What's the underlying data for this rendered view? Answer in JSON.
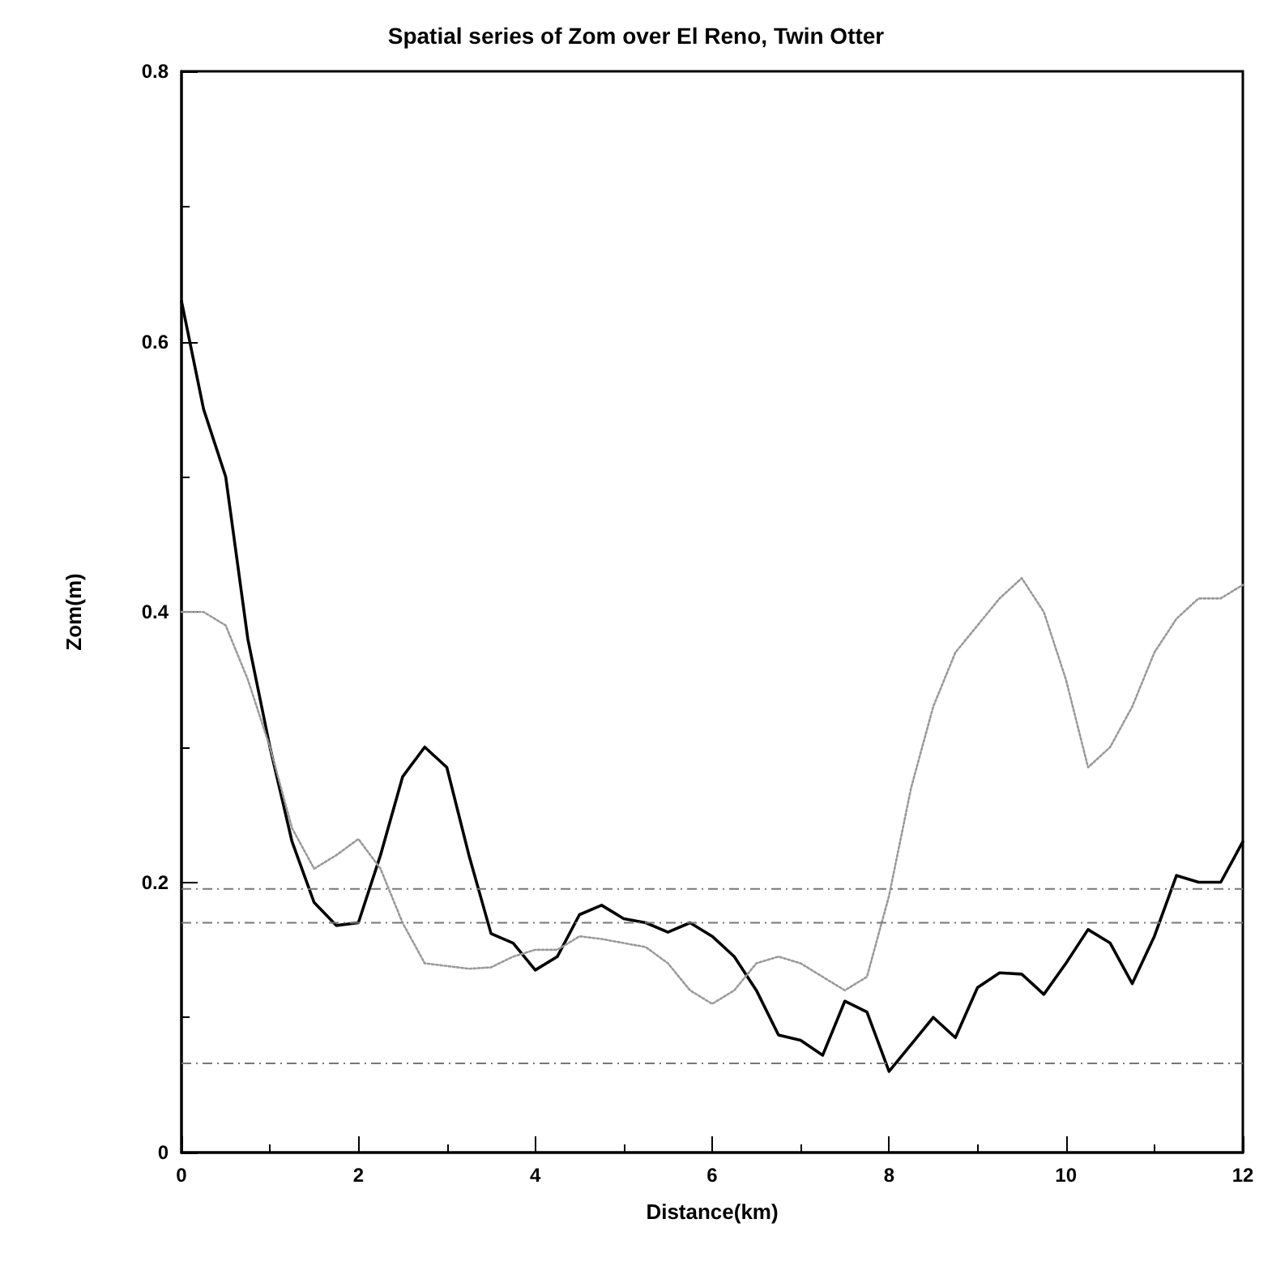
{
  "chart_data": {
    "type": "line",
    "title": "Spatial series of Zom over El Reno, Twin Otter",
    "xlabel": "Distance(km)",
    "ylabel": "Zom(m)",
    "x": [
      0,
      0.25,
      0.5,
      0.75,
      1,
      1.25,
      1.5,
      1.75,
      2,
      2.25,
      2.5,
      2.75,
      3,
      3.25,
      3.5,
      3.75,
      4,
      4.25,
      4.5,
      4.75,
      5,
      5.25,
      5.5,
      5.75,
      6,
      6.25,
      6.5,
      6.75,
      7,
      7.25,
      7.5,
      7.75,
      8,
      8.25,
      8.5,
      8.75,
      9,
      9.25,
      9.5,
      9.75,
      10,
      10.25,
      10.5,
      10.75,
      11,
      11.25,
      11.5,
      11.75,
      12
    ],
    "series": [
      {
        "color": "#000000",
        "line_style": "solid",
        "values": [
          0.63,
          0.55,
          0.5,
          0.38,
          0.3,
          0.23,
          0.185,
          0.168,
          0.17,
          0.22,
          0.278,
          0.3,
          0.285,
          0.22,
          0.162,
          0.155,
          0.135,
          0.145,
          0.176,
          0.183,
          0.173,
          0.17,
          0.163,
          0.17,
          0.16,
          0.145,
          0.12,
          0.087,
          0.083,
          0.072,
          0.112,
          0.104,
          0.06,
          0.08,
          0.1,
          0.085,
          0.122,
          0.133,
          0.132,
          0.117,
          0.14,
          0.165,
          0.155,
          0.125,
          0.16,
          0.205,
          0.2,
          0.2,
          0.23
        ]
      },
      {
        "color": "#999999",
        "line_style": "dotted",
        "values": [
          0.4,
          0.4,
          0.39,
          0.35,
          0.3,
          0.24,
          0.21,
          0.22,
          0.232,
          0.21,
          0.17,
          0.14,
          0.138,
          0.136,
          0.137,
          0.145,
          0.15,
          0.15,
          0.16,
          0.158,
          0.155,
          0.152,
          0.14,
          0.12,
          0.11,
          0.12,
          0.14,
          0.145,
          0.14,
          0.13,
          0.12,
          0.13,
          0.19,
          0.27,
          0.33,
          0.37,
          0.39,
          0.41,
          0.425,
          0.4,
          0.35,
          0.285,
          0.3,
          0.33,
          0.37,
          0.395,
          0.41,
          0.41,
          0.42
        ]
      }
    ],
    "xlim": [
      0,
      12
    ],
    "xticks": [
      0,
      2,
      4,
      6,
      8,
      10,
      12
    ],
    "ylim": [
      0,
      0.8
    ],
    "yticks": [
      0,
      0.2,
      0.4,
      0.6,
      0.8
    ],
    "ref_lines": [
      {
        "axis": "y",
        "value": 0.195,
        "color": "#777777",
        "line_style": "dashed"
      },
      {
        "axis": "y",
        "value": 0.17,
        "color": "#777777",
        "line_style": "dashed"
      },
      {
        "axis": "y",
        "value": 0.066,
        "color": "#777777",
        "line_style": "dashed"
      }
    ],
    "grid": false,
    "marker": "none"
  }
}
